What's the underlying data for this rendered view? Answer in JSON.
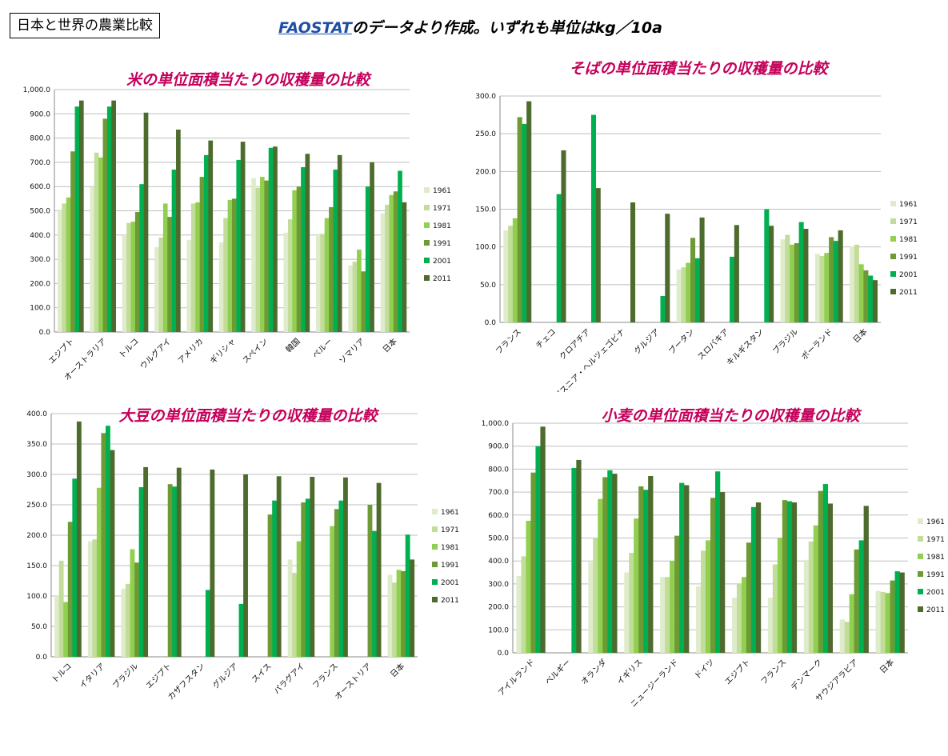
{
  "page_title": "日本と世界の農業比較",
  "subtitle": {
    "link": "FAOSTAT",
    "text": "のデータより作成。いずれも単位はkg／10a"
  },
  "colors": [
    "#dfeccb",
    "#c2dc9a",
    "#90cf4f",
    "#6e9a35",
    "#00b050",
    "#4d6b2c"
  ],
  "chart_data": [
    {
      "type": "bar",
      "title": "米の単位面積当たりの収穫量の比較",
      "categories": [
        "エジプト",
        "オーストラリア",
        "トルコ",
        "ウルグアイ",
        "アメリカ",
        "ギリシャ",
        "スペイン",
        "韓国",
        "ペルー",
        "ソマリア",
        "日本"
      ],
      "ylim": [
        0,
        1000
      ],
      "yticks": [
        "0.0",
        "100.0",
        "200.0",
        "300.0",
        "400.0",
        "500.0",
        "600.0",
        "700.0",
        "800.0",
        "900.0",
        "1,000.0"
      ],
      "legend": "right",
      "series": [
        {
          "name": "1961",
          "values": [
            505,
            598,
            400,
            350,
            380,
            370,
            635,
            410,
            405,
            275,
            490
          ]
        },
        {
          "name": "1971",
          "values": [
            530,
            740,
            450,
            390,
            530,
            470,
            595,
            465,
            405,
            290,
            525
          ]
        },
        {
          "name": "1981",
          "values": [
            555,
            720,
            455,
            530,
            535,
            545,
            640,
            585,
            470,
            340,
            565
          ]
        },
        {
          "name": "1991",
          "values": [
            745,
            880,
            495,
            475,
            640,
            550,
            625,
            600,
            515,
            250,
            580
          ]
        },
        {
          "name": "2001",
          "values": [
            930,
            930,
            610,
            670,
            730,
            710,
            760,
            680,
            670,
            600,
            665
          ]
        },
        {
          "name": "2011",
          "values": [
            955,
            955,
            905,
            835,
            790,
            785,
            765,
            735,
            730,
            700,
            535
          ]
        }
      ]
    },
    {
      "type": "bar",
      "title": "そばの単位面積当たりの収穫量の比較",
      "categories": [
        "フランス",
        "チェコ",
        "クロアチア",
        "ボスニア・ヘルツェゴビナ",
        "グルジア",
        "ブータン",
        "スロバキア",
        "キルギスタン",
        "ブラジル",
        "ポーランド",
        "日本"
      ],
      "ylim": [
        0,
        300
      ],
      "yticks": [
        "0.0",
        "50.0",
        "100.0",
        "150.0",
        "200.0",
        "250.0",
        "300.0"
      ],
      "legend": "right",
      "series": [
        {
          "name": "1961",
          "values": [
            122,
            0,
            0,
            0,
            0,
            70,
            0,
            0,
            110,
            91,
            101
          ]
        },
        {
          "name": "1971",
          "values": [
            128,
            0,
            0,
            0,
            0,
            73,
            0,
            0,
            116,
            88,
            103
          ]
        },
        {
          "name": "1981",
          "values": [
            138,
            0,
            0,
            0,
            0,
            79,
            0,
            0,
            103,
            92,
            77
          ]
        },
        {
          "name": "1991",
          "values": [
            272,
            0,
            0,
            0,
            0,
            112,
            0,
            0,
            105,
            113,
            69
          ]
        },
        {
          "name": "2001",
          "values": [
            263,
            170,
            275,
            0,
            35,
            85,
            87,
            150,
            133,
            108,
            62
          ]
        },
        {
          "name": "2011",
          "values": [
            293,
            228,
            178,
            159,
            144,
            139,
            129,
            128,
            124,
            122,
            56
          ]
        }
      ]
    },
    {
      "type": "bar",
      "title": "大豆の単位面積当たりの収穫量の比較",
      "categories": [
        "トルコ",
        "イタリア",
        "ブラジル",
        "エジプト",
        "カザフスタン",
        "グルジア",
        "スイス",
        "パラグアイ",
        "フランス",
        "オーストリア",
        "日本"
      ],
      "ylim": [
        0,
        400
      ],
      "yticks": [
        "0.0",
        "50.0",
        "100.0",
        "150.0",
        "200.0",
        "250.0",
        "300.0",
        "350.0",
        "400.0"
      ],
      "legend": "right",
      "series": [
        {
          "name": "1961",
          "values": [
            100,
            190,
            112,
            0,
            0,
            0,
            0,
            160,
            0,
            0,
            135
          ]
        },
        {
          "name": "1971",
          "values": [
            158,
            193,
            120,
            0,
            0,
            0,
            0,
            138,
            0,
            0,
            122
          ]
        },
        {
          "name": "1981",
          "values": [
            90,
            278,
            177,
            0,
            0,
            0,
            0,
            190,
            215,
            0,
            143
          ]
        },
        {
          "name": "1991",
          "values": [
            222,
            368,
            155,
            284,
            0,
            0,
            234,
            254,
            243,
            250,
            141
          ]
        },
        {
          "name": "2001",
          "values": [
            293,
            380,
            279,
            280,
            110,
            87,
            257,
            260,
            257,
            207,
            201
          ]
        },
        {
          "name": "2011",
          "values": [
            387,
            340,
            312,
            311,
            308,
            300,
            297,
            296,
            295,
            286,
            160
          ]
        }
      ]
    },
    {
      "type": "bar",
      "title": "小麦の単位面積当たりの収穫量の比較",
      "categories": [
        "アイルランド",
        "ベルギー",
        "オランダ",
        "イギリス",
        "ニュージーランド",
        "ドイツ",
        "エジプト",
        "フランス",
        "デンマーク",
        "サウジアラビア",
        "日本"
      ],
      "ylim": [
        0,
        1000
      ],
      "yticks": [
        "0.0",
        "100.0",
        "200.0",
        "300.0",
        "400.0",
        "500.0",
        "600.0",
        "700.0",
        "800.0",
        "900.0",
        "1,000.0"
      ],
      "legend": "right",
      "series": [
        {
          "name": "1961",
          "values": [
            335,
            0,
            395,
            350,
            330,
            290,
            240,
            240,
            405,
            145,
            270
          ]
        },
        {
          "name": "1971",
          "values": [
            420,
            0,
            500,
            435,
            330,
            445,
            300,
            385,
            485,
            135,
            265
          ]
        },
        {
          "name": "1981",
          "values": [
            575,
            0,
            670,
            585,
            400,
            490,
            330,
            500,
            555,
            255,
            260
          ]
        },
        {
          "name": "1991",
          "values": [
            785,
            0,
            765,
            725,
            510,
            675,
            480,
            665,
            705,
            450,
            315
          ]
        },
        {
          "name": "2001",
          "values": [
            900,
            805,
            795,
            710,
            740,
            790,
            635,
            660,
            735,
            490,
            355
          ]
        },
        {
          "name": "2011",
          "values": [
            985,
            840,
            780,
            770,
            730,
            700,
            655,
            655,
            650,
            640,
            350
          ]
        }
      ]
    }
  ]
}
